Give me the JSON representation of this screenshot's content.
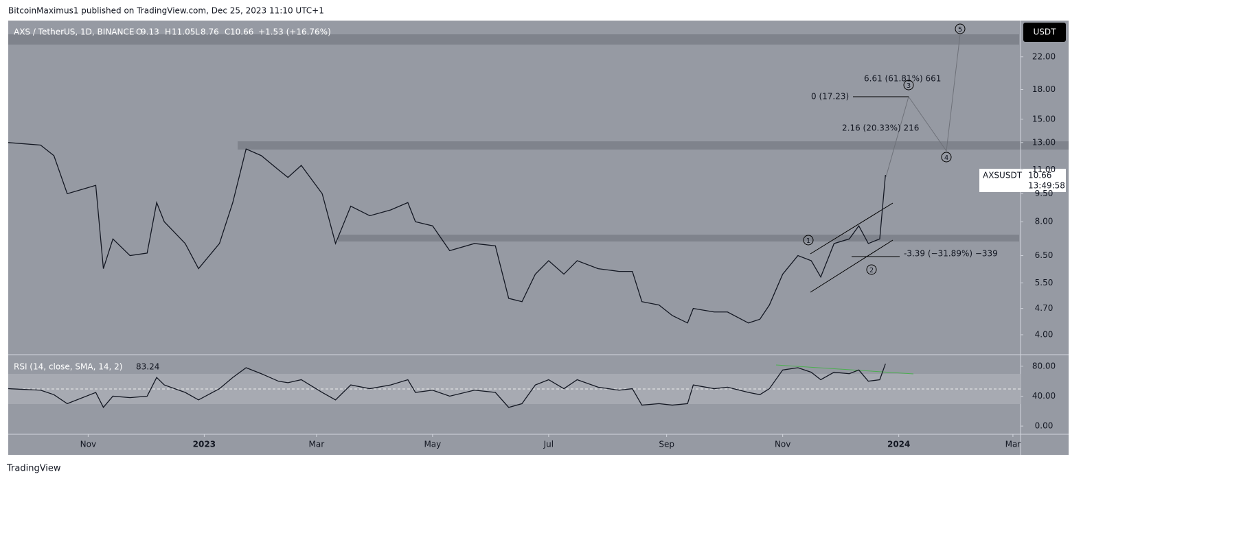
{
  "header": {
    "publisher": "BitcoinMaximus1 published on TradingView.com, Dec 25, 2023 11:10 UTC+1"
  },
  "footer": {
    "brand": "TradingView"
  },
  "chart_data": [
    {
      "type": "line",
      "log": true,
      "grid": false,
      "color": "#131722",
      "title": "AXS / TetherUS, 1D, BINANCE",
      "ohlc": {
        "o_label": "O",
        "o": 9.13,
        "h_label": "H",
        "h": 11.05,
        "l_label": "L",
        "l": 8.76,
        "c_label": "C",
        "c": 10.66,
        "change": "+1.53 (+16.76%)"
      },
      "currency": "USDT",
      "last_price": {
        "symbol": "AXSUSDT",
        "price": 10.66,
        "countdown": "13:49:58"
      },
      "annotations": [
        "0 (17.23)",
        "6.61 (61.81%) 661",
        "2.16 (20.33%) 216",
        "-3.39 (−31.89%) −339"
      ],
      "waves": [
        "1",
        "2",
        "3",
        "4",
        "5"
      ],
      "x": [
        -103,
        -86,
        -79,
        -72,
        -57,
        -53,
        -48,
        -39,
        -30,
        -25,
        -21,
        -10,
        -3,
        8,
        15,
        22,
        30,
        39,
        44,
        51,
        62,
        69,
        77,
        87,
        98,
        107,
        111,
        120,
        129,
        142,
        153,
        160,
        167,
        174,
        181,
        189,
        196,
        207,
        218,
        225,
        230,
        239,
        246,
        254,
        257,
        268,
        275,
        286,
        292,
        297,
        304,
        312,
        319,
        324,
        331,
        339,
        344,
        349,
        355,
        358
      ],
      "values": [
        13.0,
        12.8,
        12.0,
        9.5,
        10.0,
        6.0,
        7.2,
        6.5,
        6.6,
        9.0,
        8.0,
        7.0,
        6.0,
        7.0,
        9.0,
        12.5,
        12.0,
        11.0,
        10.5,
        11.3,
        9.5,
        7.0,
        8.8,
        8.3,
        8.6,
        9.0,
        8.0,
        7.8,
        6.7,
        7.0,
        6.9,
        5.0,
        4.9,
        5.8,
        6.3,
        5.8,
        6.3,
        6.0,
        5.9,
        5.9,
        4.9,
        4.8,
        4.5,
        4.3,
        4.7,
        4.6,
        4.6,
        4.3,
        4.4,
        4.8,
        5.8,
        6.5,
        6.3,
        5.7,
        7.0,
        7.2,
        7.8,
        7.0,
        7.2,
        10.66
      ],
      "xlim": [
        -103,
        429
      ],
      "xticks": [
        {
          "value": -61,
          "label": "Nov"
        },
        {
          "value": 0,
          "label": "2023"
        },
        {
          "value": 59,
          "label": "Mar"
        },
        {
          "value": 120,
          "label": "May"
        },
        {
          "value": 181,
          "label": "Jul"
        },
        {
          "value": 243,
          "label": "Sep"
        },
        {
          "value": 304,
          "label": "Nov"
        },
        {
          "value": 365,
          "label": "2024"
        },
        {
          "value": 425,
          "label": "Mar"
        }
      ],
      "ylim": [
        3.54,
        26.9
      ],
      "yticks": [
        {
          "value": 22,
          "label": "22.00"
        },
        {
          "value": 18,
          "label": "18.00"
        },
        {
          "value": 15,
          "label": "15.00"
        },
        {
          "value": 13,
          "label": "13.00"
        },
        {
          "value": 11,
          "label": "11.00"
        },
        {
          "value": 9.5,
          "label": "9.50"
        },
        {
          "value": 8,
          "label": "8.00"
        },
        {
          "value": 6.5,
          "label": "6.50"
        },
        {
          "value": 5.5,
          "label": "5.50"
        },
        {
          "value": 4.7,
          "label": "4.70"
        },
        {
          "value": 4,
          "label": "4.00"
        }
      ]
    },
    {
      "type": "line",
      "grid": false,
      "color": "#131722",
      "title": "RSI (14, close, SMA, 14, 2)",
      "last_value": 83.24,
      "x": [
        -103,
        -86,
        -79,
        -72,
        -57,
        -53,
        -48,
        -39,
        -30,
        -25,
        -21,
        -10,
        -3,
        8,
        15,
        22,
        30,
        39,
        44,
        51,
        62,
        69,
        77,
        87,
        98,
        107,
        111,
        120,
        129,
        142,
        153,
        160,
        167,
        174,
        181,
        189,
        196,
        207,
        218,
        225,
        230,
        239,
        246,
        254,
        257,
        268,
        275,
        286,
        292,
        297,
        304,
        312,
        319,
        324,
        331,
        339,
        344,
        349,
        355,
        358
      ],
      "values": [
        50,
        48,
        42,
        30,
        45,
        25,
        40,
        38,
        40,
        65,
        55,
        45,
        35,
        50,
        65,
        78,
        70,
        60,
        58,
        62,
        45,
        35,
        55,
        50,
        55,
        62,
        45,
        48,
        40,
        48,
        45,
        25,
        30,
        55,
        62,
        50,
        62,
        52,
        48,
        50,
        28,
        30,
        28,
        30,
        55,
        50,
        52,
        45,
        42,
        50,
        75,
        78,
        72,
        62,
        72,
        70,
        75,
        60,
        62,
        83.24
      ],
      "xlim": [
        -103,
        429
      ],
      "ylim": [
        -10,
        92.7
      ],
      "yticks": [
        {
          "value": 80,
          "label": "80.00"
        },
        {
          "value": 40,
          "label": "40.00"
        },
        {
          "value": 0,
          "label": "0.00"
        }
      ]
    }
  ]
}
